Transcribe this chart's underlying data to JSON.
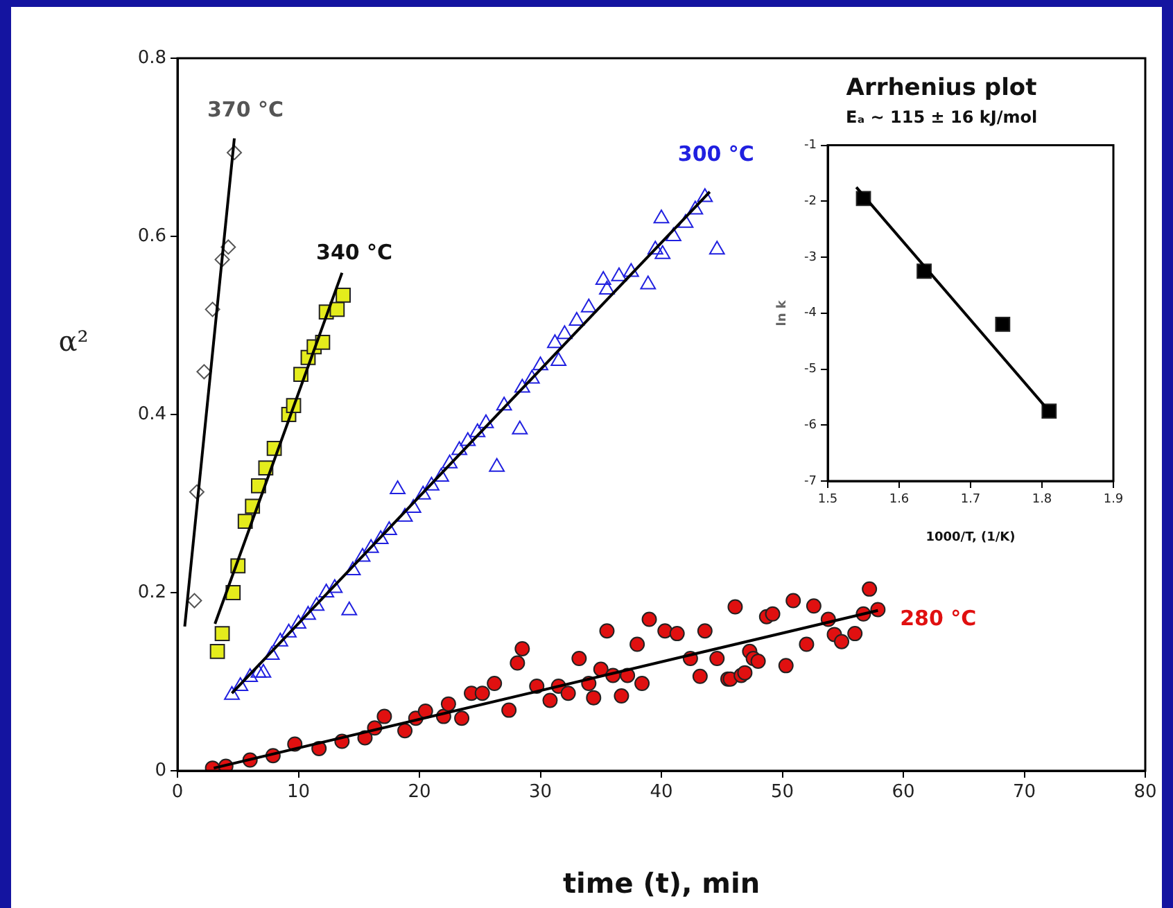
{
  "chart_data": [
    {
      "type": "scatter",
      "xlabel": "time (t), min",
      "ylabel": "α²",
      "xlim": [
        0,
        80
      ],
      "xticks": [
        0,
        10,
        20,
        30,
        40,
        50,
        60,
        70,
        80
      ],
      "ylim": [
        0,
        0.8
      ],
      "yticks": [
        0,
        0.2,
        0.4,
        0.6,
        0.8
      ],
      "grid": false,
      "legend": false,
      "series": [
        {
          "name": "370 °C",
          "color": "#555555",
          "marker": "diamond",
          "x": [
            1.4,
            1.6,
            2.2,
            2.9,
            3.7,
            4.2,
            4.7
          ],
          "values": [
            0.191,
            0.313,
            0.448,
            0.518,
            0.574,
            0.588,
            0.694
          ]
        },
        {
          "type": "line",
          "color": "#000000",
          "marker": "none",
          "x": [
            0.6,
            4.7
          ],
          "values": [
            0.162,
            0.71
          ]
        },
        {
          "name": "340 °C",
          "color": "#e4ec1c",
          "marker": "square",
          "x": [
            3.3,
            3.7,
            4.6,
            5.0,
            5.6,
            6.2,
            6.7,
            7.3,
            8.0,
            9.2,
            9.6,
            10.2,
            10.8,
            11.3,
            12.0,
            12.3,
            13.2,
            13.7
          ],
          "values": [
            0.134,
            0.154,
            0.2,
            0.23,
            0.28,
            0.297,
            0.32,
            0.34,
            0.362,
            0.4,
            0.41,
            0.445,
            0.464,
            0.476,
            0.481,
            0.515,
            0.518,
            0.534
          ]
        },
        {
          "type": "line",
          "color": "#000000",
          "marker": "none",
          "x": [
            3.1,
            13.6
          ],
          "values": [
            0.165,
            0.559
          ]
        },
        {
          "name": "300 °C",
          "color": "#2020e0",
          "marker": "triangle",
          "x": [
            4.5,
            5.2,
            6,
            6.7,
            7.1,
            7.8,
            8.5,
            9.2,
            10,
            10.8,
            11.5,
            12.3,
            13,
            14.2,
            14.5,
            15.3,
            16,
            16.8,
            17.5,
            18.2,
            18.8,
            19.5,
            20.3,
            21,
            21.8,
            22.5,
            23.3,
            24,
            24.8,
            25.5,
            26.4,
            27,
            28.3,
            28.5,
            29.3,
            30,
            31.5,
            31.2,
            32,
            33,
            34,
            35.2,
            35.5,
            36.5,
            37.5,
            38.9,
            39.5,
            40.1,
            40,
            41,
            42,
            42.8,
            43.6,
            44.6
          ],
          "values": [
            0.085,
            0.095,
            0.105,
            0.11,
            0.11,
            0.13,
            0.145,
            0.155,
            0.165,
            0.175,
            0.185,
            0.2,
            0.205,
            0.18,
            0.225,
            0.24,
            0.25,
            0.26,
            0.27,
            0.316,
            0.285,
            0.295,
            0.31,
            0.32,
            0.33,
            0.345,
            0.36,
            0.37,
            0.38,
            0.39,
            0.341,
            0.41,
            0.383,
            0.43,
            0.44,
            0.455,
            0.46,
            0.48,
            0.49,
            0.505,
            0.52,
            0.551,
            0.54,
            0.555,
            0.56,
            0.546,
            0.585,
            0.58,
            0.62,
            0.6,
            0.615,
            0.63,
            0.644,
            0.585
          ]
        },
        {
          "type": "line",
          "color": "#000000",
          "marker": "none",
          "x": [
            4.5,
            44
          ],
          "values": [
            0.087,
            0.65
          ]
        },
        {
          "name": "280 °C",
          "color": "#e01010",
          "marker": "circle",
          "x": [
            2.9,
            4.0,
            6.0,
            7.9,
            9.7,
            11.7,
            13.6,
            15.5,
            16.3,
            17.1,
            18.8,
            19.7,
            20.5,
            22.0,
            22.4,
            23.5,
            24.3,
            25.2,
            26.2,
            27.4,
            28.1,
            28.5,
            29.7,
            30.8,
            31.5,
            32.3,
            33.2,
            34.0,
            34.4,
            35.0,
            35.5,
            36.0,
            36.7,
            37.2,
            38.0,
            38.4,
            39.0,
            40.3,
            41.3,
            42.4,
            43.2,
            43.6,
            44.6,
            45.5,
            45.7,
            46.1,
            46.6,
            46.9,
            47.3,
            47.6,
            48.0,
            48.7,
            49.2,
            50.3,
            50.9,
            52.0,
            52.6,
            53.8,
            54.3,
            54.9,
            56.0,
            56.7,
            57.2,
            57.9
          ],
          "values": [
            0.003,
            0.005,
            0.012,
            0.017,
            0.03,
            0.025,
            0.033,
            0.037,
            0.048,
            0.061,
            0.045,
            0.059,
            0.067,
            0.061,
            0.075,
            0.059,
            0.087,
            0.087,
            0.098,
            0.068,
            0.121,
            0.137,
            0.095,
            0.079,
            0.095,
            0.087,
            0.126,
            0.098,
            0.082,
            0.114,
            0.157,
            0.107,
            0.084,
            0.107,
            0.142,
            0.098,
            0.17,
            0.157,
            0.154,
            0.126,
            0.106,
            0.157,
            0.126,
            0.103,
            0.103,
            0.184,
            0.107,
            0.11,
            0.134,
            0.126,
            0.123,
            0.173,
            0.176,
            0.118,
            0.191,
            0.142,
            0.185,
            0.17,
            0.153,
            0.145,
            0.154,
            0.176,
            0.204,
            0.181
          ]
        },
        {
          "type": "line",
          "color": "#000000",
          "marker": "none",
          "x": [
            3.0,
            57.9
          ],
          "values": [
            0.003,
            0.18
          ]
        }
      ]
    },
    {
      "type": "scatter",
      "title": "Arrhenius plot",
      "subtitle": "Eₐ ~ 115 ± 16 kJ/mol",
      "xlabel": "1000/T, (1/K)",
      "ylabel": "ln k",
      "xlim": [
        1.5,
        1.9
      ],
      "xticks": [
        1.5,
        1.6,
        1.7,
        1.8,
        1.9
      ],
      "ylim": [
        -7,
        -1
      ],
      "yticks": [
        -7,
        -6,
        -5,
        -4,
        -3,
        -2,
        -1
      ],
      "grid": false,
      "legend": false,
      "series": [
        {
          "color": "#000000",
          "marker": "square",
          "x": [
            1.55,
            1.635,
            1.745,
            1.81
          ],
          "values": [
            -1.95,
            -3.25,
            -4.2,
            -5.75
          ]
        },
        {
          "type": "line",
          "color": "#000000",
          "marker": "none",
          "x": [
            1.54,
            1.81
          ],
          "values": [
            -1.75,
            -5.75
          ]
        }
      ]
    }
  ]
}
